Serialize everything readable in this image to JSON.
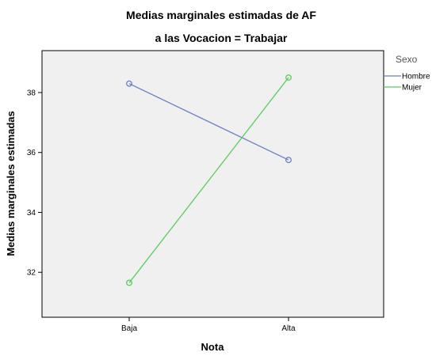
{
  "chart_data": {
    "type": "line",
    "title": "Medias marginales estimadas de AF",
    "subtitle": "a las Vocacion = Trabajar",
    "xlabel": "Nota",
    "ylabel": "Medias marginales estimadas",
    "categories": [
      "Baja",
      "Alta"
    ],
    "ylim": [
      30.5,
      39.4
    ],
    "yticks": [
      32,
      34,
      36,
      38
    ],
    "grid": false,
    "legend": {
      "title": "Sexo",
      "position": "right"
    },
    "plot_background": "#f0f0f0",
    "series": [
      {
        "name": "Hombre",
        "color": "#6a7fc8",
        "values": [
          38.3,
          35.75
        ]
      },
      {
        "name": "Mujer",
        "color": "#5ccc5c",
        "values": [
          31.65,
          38.5
        ]
      }
    ]
  }
}
